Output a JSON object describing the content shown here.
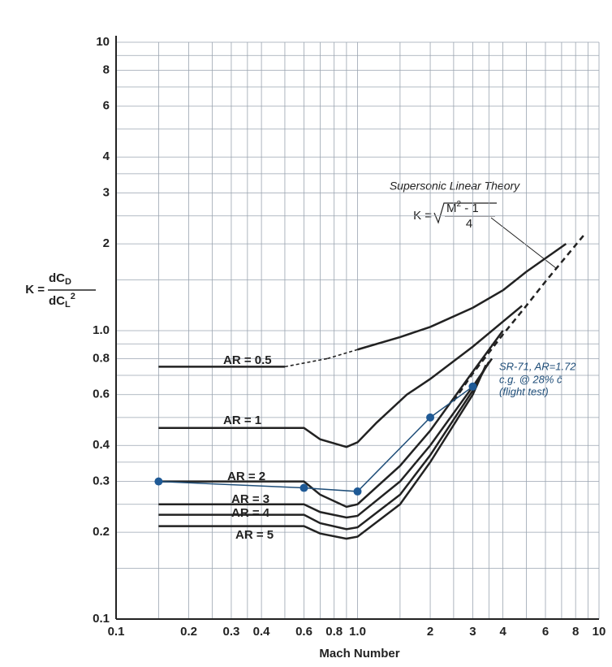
{
  "chart_data": {
    "type": "line",
    "log_x": true,
    "log_y": true,
    "grid": true,
    "x_label": "Mach Number",
    "y_label": {
      "prefix": "K =",
      "num": "dC",
      "num_sub": "D",
      "den": "dC",
      "den_sub": "L",
      "den_sup": "2"
    },
    "xlim": [
      0.1,
      10
    ],
    "ylim": [
      0.1,
      10
    ],
    "xticks": [
      0.1,
      0.2,
      0.3,
      0.4,
      0.6,
      0.8,
      {
        "value": 1,
        "label": "1.0"
      },
      2,
      3,
      4,
      6,
      8,
      10
    ],
    "yticks": [
      0.1,
      0.2,
      0.3,
      0.4,
      0.6,
      0.8,
      {
        "value": 1,
        "label": "1.0"
      },
      2,
      3,
      4,
      6,
      8,
      10
    ],
    "xgrid": [
      0.15,
      0.25,
      0.35,
      0.5,
      0.7,
      0.9,
      1.5,
      2.5,
      3.5,
      5,
      7,
      9
    ],
    "ygrid": [
      0.15,
      0.25,
      0.35,
      0.5,
      0.7,
      0.9,
      1.5,
      2.5,
      3.5,
      5,
      7,
      9
    ],
    "series": [
      {
        "name": "AR = 0.5",
        "color": "#222222",
        "style": "solid",
        "dashed_segments": [
          1,
          2
        ],
        "x": [
          0.15,
          0.5,
          0.75,
          1.0,
          1.5,
          2,
          3,
          4,
          5,
          7.3
        ],
        "values": [
          0.75,
          0.75,
          0.8,
          0.86,
          0.95,
          1.03,
          1.2,
          1.38,
          1.6,
          2.0
        ]
      },
      {
        "name": "AR = 1",
        "color": "#222222",
        "style": "solid",
        "x": [
          0.15,
          0.6,
          0.7,
          0.9,
          1.0,
          1.2,
          1.6,
          2,
          3,
          4.8
        ],
        "values": [
          0.46,
          0.46,
          0.42,
          0.395,
          0.41,
          0.48,
          0.6,
          0.68,
          0.88,
          1.22
        ]
      },
      {
        "name": "AR = 2",
        "color": "#222222",
        "style": "solid",
        "x": [
          0.15,
          0.6,
          0.7,
          0.9,
          1.0,
          1.5,
          2,
          3,
          4
        ],
        "values": [
          0.3,
          0.3,
          0.27,
          0.245,
          0.25,
          0.34,
          0.45,
          0.72,
          1.0
        ]
      },
      {
        "name": "AR = 3",
        "color": "#222222",
        "style": "solid",
        "x": [
          0.15,
          0.6,
          0.7,
          0.9,
          1.0,
          1.5,
          2,
          3,
          3.6
        ],
        "values": [
          0.25,
          0.25,
          0.235,
          0.225,
          0.228,
          0.3,
          0.4,
          0.64,
          0.8
        ]
      },
      {
        "name": "AR = 4",
        "color": "#222222",
        "style": "solid",
        "x": [
          0.15,
          0.6,
          0.7,
          0.9,
          1.0,
          1.5,
          2,
          3,
          3.5
        ],
        "values": [
          0.23,
          0.23,
          0.215,
          0.205,
          0.208,
          0.27,
          0.37,
          0.62,
          0.78
        ]
      },
      {
        "name": "AR = 5",
        "color": "#222222",
        "style": "solid",
        "x": [
          0.15,
          0.6,
          0.7,
          0.9,
          1.0,
          1.5,
          2,
          3,
          3.4
        ],
        "values": [
          0.21,
          0.21,
          0.198,
          0.19,
          0.193,
          0.25,
          0.35,
          0.6,
          0.76
        ]
      },
      {
        "name": "Supersonic Linear Theory",
        "color": "#222222",
        "style": "dashed",
        "x": [
          2.5,
          3,
          4,
          5,
          6,
          7,
          8,
          8.8
        ],
        "values": [
          0.57,
          0.71,
          0.97,
          1.22,
          1.48,
          1.73,
          1.98,
          2.18
        ]
      },
      {
        "name": "SR-71, AR=1.72",
        "color": "#1f4e79",
        "style": "solid",
        "markers": true,
        "x": [
          0.15,
          0.6,
          1.0,
          2,
          3
        ],
        "values": [
          0.3,
          0.285,
          0.277,
          0.5,
          0.64
        ]
      }
    ],
    "formula": {
      "lhs": "K =",
      "num": "M",
      "num_sup": "2",
      "num_rest": " - 1",
      "den": "4"
    },
    "sr71_notes": [
      "c.g. @ 28% c̄",
      "(flight test)"
    ]
  }
}
